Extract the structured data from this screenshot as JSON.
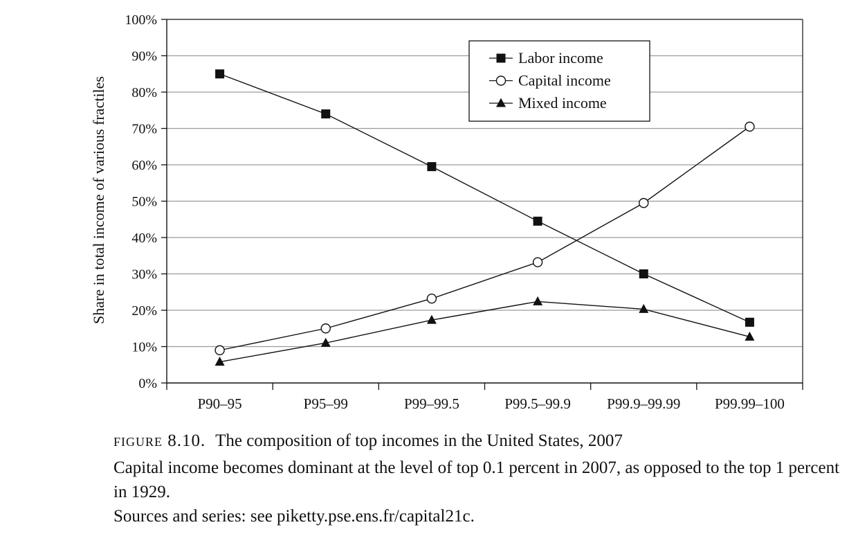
{
  "chart_data": {
    "type": "line",
    "categories": [
      "P90–95",
      "P95–99",
      "P99–99.5",
      "P99.5–99.9",
      "P99.9–99.99",
      "P99.99–100"
    ],
    "ylabel": "Share in total income of various fractiles",
    "xlabel": "",
    "ylim": [
      0,
      100
    ],
    "y_ticks": [
      "0%",
      "10%",
      "20%",
      "30%",
      "40%",
      "50%",
      "60%",
      "70%",
      "80%",
      "90%",
      "100%"
    ],
    "grid": true,
    "legend_position": "top-right",
    "series": [
      {
        "name": "Labor income",
        "marker": "square",
        "values": [
          85,
          74,
          59.5,
          44.5,
          30,
          16.7
        ]
      },
      {
        "name": "Capital income",
        "marker": "circle",
        "values": [
          9,
          15,
          23.2,
          33.2,
          49.5,
          70.5
        ]
      },
      {
        "name": "Mixed income",
        "marker": "triangle",
        "values": [
          5.8,
          11,
          17.3,
          22.4,
          20.3,
          12.7
        ]
      }
    ]
  },
  "caption": {
    "figure_number": "figure 8.10.",
    "title": "The composition of top incomes in the United States, 2007",
    "description": "Capital income becomes dominant at the level of top 0.1 percent in 2007, as opposed to the top 1 percent in 1929.",
    "sources": "Sources and series: see piketty.pse.ens.fr/capital21c."
  }
}
